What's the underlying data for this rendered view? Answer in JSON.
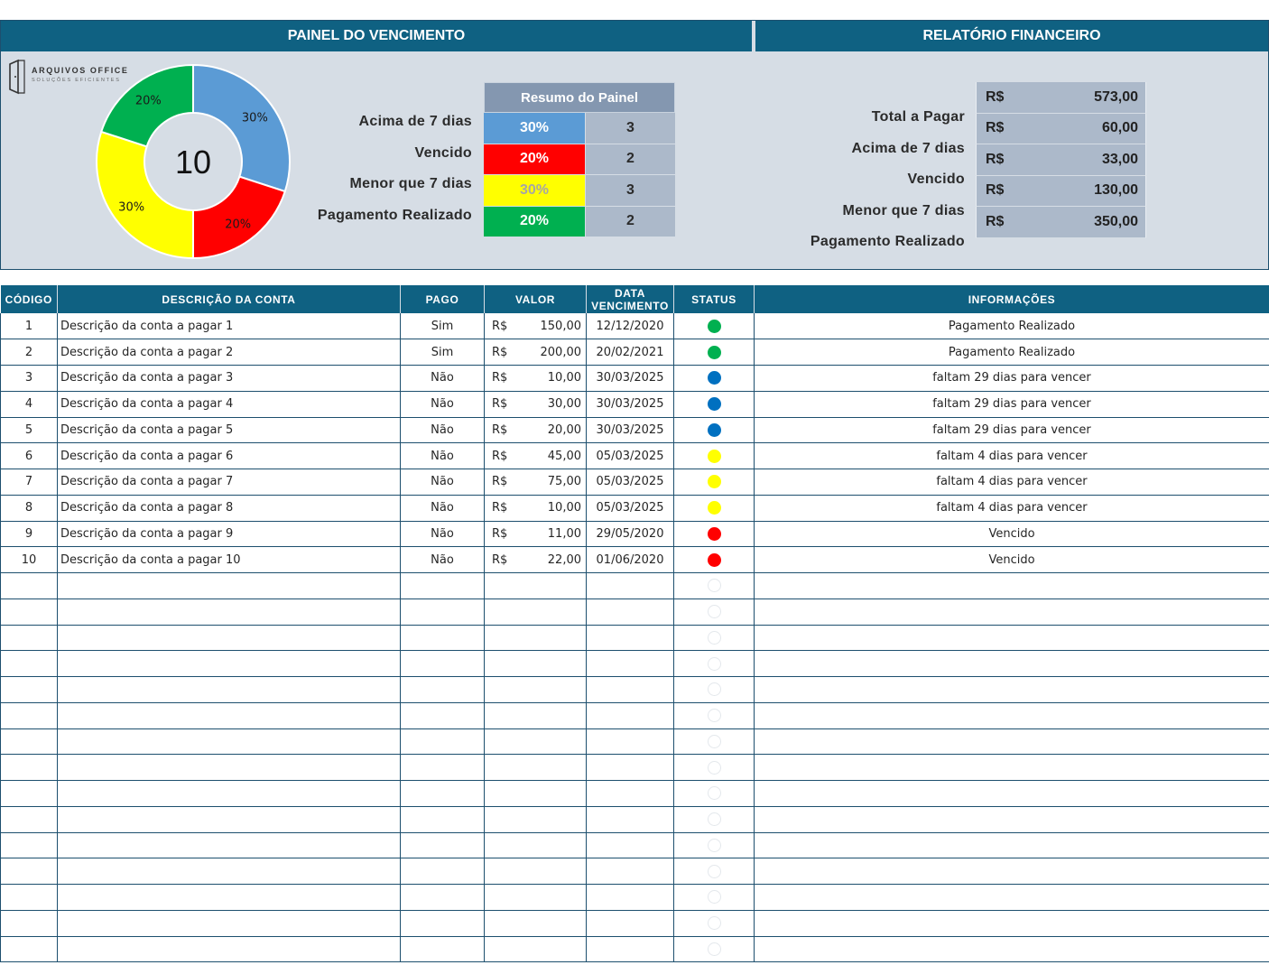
{
  "dashboard": {
    "left_title": "PAINEL DO VENCIMENTO",
    "right_title": "RELATÓRIO FINANCEIRO",
    "logo": {
      "title": "ARQUIVOS OFFICE",
      "subtitle": "SOLUÇÕES EFICIENTES"
    },
    "donut": {
      "center_value": "10",
      "slices": [
        {
          "label": "30%",
          "fraction": 0.3,
          "color": "#5b9bd5"
        },
        {
          "label": "20%",
          "fraction": 0.2,
          "color": "#ff0000"
        },
        {
          "label": "30%",
          "fraction": 0.3,
          "color": "#ffff00"
        },
        {
          "label": "20%",
          "fraction": 0.2,
          "color": "#00b050"
        }
      ]
    },
    "summary": {
      "title": "Resumo do Painel",
      "rows": [
        {
          "label": "Acima de 7 dias",
          "percent": "30%",
          "count": "3",
          "color": "#5b9bd5",
          "text_color": "#ffffff"
        },
        {
          "label": "Vencido",
          "percent": "20%",
          "count": "2",
          "color": "#ff0000",
          "text_color": "#ffffff"
        },
        {
          "label": "Menor que 7 dias",
          "percent": "30%",
          "count": "3",
          "color": "#ffff00",
          "text_color": "#a6a6a6"
        },
        {
          "label": "Pagamento Realizado",
          "percent": "20%",
          "count": "2",
          "color": "#00b050",
          "text_color": "#ffffff"
        }
      ]
    },
    "report": {
      "rows": [
        {
          "label": "Total a Pagar",
          "currency": "R$",
          "value": "573,00"
        },
        {
          "label": "Acima de 7 dias",
          "currency": "R$",
          "value": "60,00"
        },
        {
          "label": "Vencido",
          "currency": "R$",
          "value": "33,00"
        },
        {
          "label": "Menor que 7 dias",
          "currency": "R$",
          "value": "130,00"
        },
        {
          "label": "Pagamento Realizado",
          "currency": "R$",
          "value": "350,00"
        }
      ]
    }
  },
  "table": {
    "columns": {
      "code": "CÓDIGO",
      "desc": "DESCRIÇÃO DA CONTA",
      "pago": "PAGO",
      "valor": "VALOR",
      "date_line1": "DATA",
      "date_line2": "VENCIMENTO",
      "status": "STATUS",
      "info": "INFORMAÇÕES"
    },
    "status_colors": {
      "paid": "#00b050",
      "future": "#0070c0",
      "soon": "#ffff00",
      "overdue": "#ff0000"
    },
    "rows": [
      {
        "code": "1",
        "desc": "Descrição da conta a pagar 1",
        "pago": "Sim",
        "currency": "R$",
        "valor": "150,00",
        "date": "12/12/2020",
        "status": "paid",
        "info": "Pagamento Realizado"
      },
      {
        "code": "2",
        "desc": "Descrição da conta a pagar 2",
        "pago": "Sim",
        "currency": "R$",
        "valor": "200,00",
        "date": "20/02/2021",
        "status": "paid",
        "info": "Pagamento Realizado"
      },
      {
        "code": "3",
        "desc": "Descrição da conta a pagar 3",
        "pago": "Não",
        "currency": "R$",
        "valor": "10,00",
        "date": "30/03/2025",
        "status": "future",
        "info": "faltam 29 dias para vencer"
      },
      {
        "code": "4",
        "desc": "Descrição da conta a pagar 4",
        "pago": "Não",
        "currency": "R$",
        "valor": "30,00",
        "date": "30/03/2025",
        "status": "future",
        "info": "faltam 29 dias para vencer"
      },
      {
        "code": "5",
        "desc": "Descrição da conta a pagar 5",
        "pago": "Não",
        "currency": "R$",
        "valor": "20,00",
        "date": "30/03/2025",
        "status": "future",
        "info": "faltam 29 dias para vencer"
      },
      {
        "code": "6",
        "desc": "Descrição da conta a pagar 6",
        "pago": "Não",
        "currency": "R$",
        "valor": "45,00",
        "date": "05/03/2025",
        "status": "soon",
        "info": "faltam 4 dias para vencer"
      },
      {
        "code": "7",
        "desc": "Descrição da conta a pagar 7",
        "pago": "Não",
        "currency": "R$",
        "valor": "75,00",
        "date": "05/03/2025",
        "status": "soon",
        "info": "faltam 4 dias para vencer"
      },
      {
        "code": "8",
        "desc": "Descrição da conta a pagar 8",
        "pago": "Não",
        "currency": "R$",
        "valor": "10,00",
        "date": "05/03/2025",
        "status": "soon",
        "info": "faltam 4 dias para vencer"
      },
      {
        "code": "9",
        "desc": "Descrição da conta a pagar 9",
        "pago": "Não",
        "currency": "R$",
        "valor": "11,00",
        "date": "29/05/2020",
        "status": "overdue",
        "info": "Vencido"
      },
      {
        "code": "10",
        "desc": "Descrição da conta a pagar 10",
        "pago": "Não",
        "currency": "R$",
        "valor": "22,00",
        "date": "01/06/2020",
        "status": "overdue",
        "info": "Vencido"
      }
    ],
    "empty_rows": 15
  }
}
